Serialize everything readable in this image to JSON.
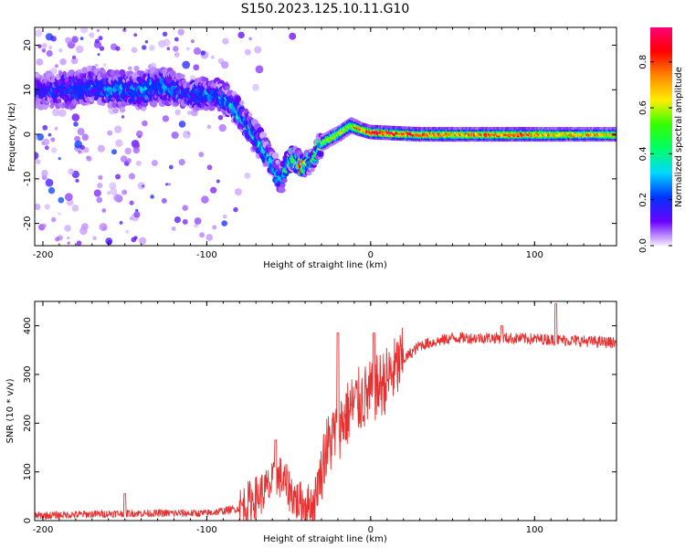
{
  "title": "S150.2023.125.10.11.G10",
  "chart_data": [
    {
      "type": "heatmap",
      "xlabel": "Height of straight line (km)",
      "ylabel": "Frequency (Hz)",
      "xlim": [
        -205,
        150
      ],
      "ylim": [
        -25,
        24
      ],
      "xticks": [
        -200,
        -100,
        0,
        100
      ],
      "yticks": [
        -20,
        -10,
        0,
        10,
        20
      ],
      "colorbar": {
        "label": "Normalized spectral amplitude",
        "range": [
          0,
          0.95
        ],
        "ticks": [
          "0.0",
          "0.2",
          "0.4",
          "0.6",
          "0.8"
        ],
        "colors": [
          "#f5ecfb",
          "#6a00ff",
          "#0033ff",
          "#00d8ff",
          "#00ff66",
          "#33ff00",
          "#ffee00",
          "#ff8800",
          "#ff0000",
          "#ff0077"
        ]
      },
      "ridge": [
        {
          "x": -200,
          "y": 10,
          "amp": 0.15,
          "spread": 3
        },
        {
          "x": -185,
          "y": 10,
          "amp": 0.2,
          "spread": 3
        },
        {
          "x": -170,
          "y": 11,
          "amp": 0.2,
          "spread": 3
        },
        {
          "x": -155,
          "y": 10,
          "amp": 0.25,
          "spread": 3
        },
        {
          "x": -140,
          "y": 10,
          "amp": 0.25,
          "spread": 3
        },
        {
          "x": -125,
          "y": 11,
          "amp": 0.22,
          "spread": 3
        },
        {
          "x": -110,
          "y": 9,
          "amp": 0.2,
          "spread": 2.5
        },
        {
          "x": -95,
          "y": 9,
          "amp": 0.25,
          "spread": 2.5
        },
        {
          "x": -85,
          "y": 7,
          "amp": 0.3,
          "spread": 2
        },
        {
          "x": -75,
          "y": 2,
          "amp": 0.3,
          "spread": 2
        },
        {
          "x": -65,
          "y": -3,
          "amp": 0.3,
          "spread": 2
        },
        {
          "x": -55,
          "y": -10,
          "amp": 0.3,
          "spread": 2
        },
        {
          "x": -48,
          "y": -5,
          "amp": 0.4,
          "spread": 1.5
        },
        {
          "x": -42,
          "y": -7,
          "amp": 0.7,
          "spread": 1.2
        },
        {
          "x": -36,
          "y": -6,
          "amp": 0.4,
          "spread": 1.2
        },
        {
          "x": -30,
          "y": -2,
          "amp": 0.5,
          "spread": 1.2
        },
        {
          "x": -20,
          "y": 0,
          "amp": 0.6,
          "spread": 1.2
        },
        {
          "x": -12,
          "y": 2,
          "amp": 0.6,
          "spread": 1.2
        },
        {
          "x": -5,
          "y": 1,
          "amp": 0.8,
          "spread": 1
        },
        {
          "x": 0,
          "y": 0.5,
          "amp": 0.9,
          "spread": 1
        },
        {
          "x": 30,
          "y": 0,
          "amp": 0.8,
          "spread": 1
        },
        {
          "x": 60,
          "y": 0,
          "amp": 0.75,
          "spread": 1
        },
        {
          "x": 90,
          "y": 0,
          "amp": 0.8,
          "spread": 1
        },
        {
          "x": 120,
          "y": 0,
          "amp": 0.7,
          "spread": 1
        },
        {
          "x": 150,
          "y": 0,
          "amp": 0.7,
          "spread": 1
        }
      ]
    },
    {
      "type": "line",
      "xlabel": "Height of straight line (km)",
      "ylabel": "SNR (10 * v/v)",
      "xlim": [
        -205,
        150
      ],
      "ylim": [
        0,
        450
      ],
      "xticks": [
        -200,
        -100,
        0,
        100
      ],
      "yticks": [
        0,
        100,
        200,
        300,
        400
      ],
      "series": [
        {
          "color": "#e83030",
          "trend": {
            "x": [
              -205,
              -150,
              -100,
              -80,
              -65,
              -55,
              -45,
              -35,
              -28,
              -20,
              -10,
              0,
              10,
              20,
              30,
              50,
              80,
              110,
              150
            ],
            "y": [
              10,
              15,
              15,
              25,
              60,
              90,
              40,
              30,
              140,
              190,
              240,
              260,
              290,
              330,
              360,
              375,
              375,
              372,
              365
            ]
          },
          "spikes": [
            {
              "x": -150,
              "y": 55
            },
            {
              "x": -58,
              "y": 165
            },
            {
              "x": -20,
              "y": 385
            },
            {
              "x": 2,
              "y": 385
            },
            {
              "x": 80,
              "y": 400
            },
            {
              "x": 113,
              "y": 445
            }
          ]
        }
      ]
    }
  ]
}
